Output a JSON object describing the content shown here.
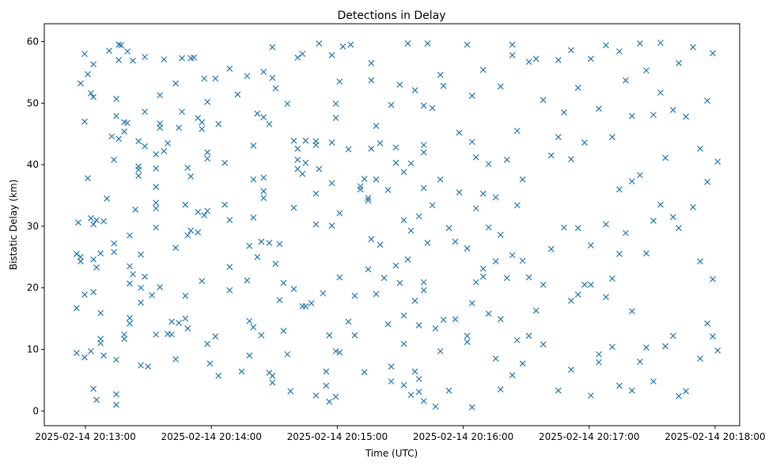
{
  "chart_data": {
    "type": "scatter",
    "title": "Detections in Delay",
    "xlabel": "Time (UTC)",
    "ylabel": "Bistatic Delay (km)",
    "x_unit": "seconds after 2025-02-14 20:13:00",
    "xlim": [
      -19.6,
      311.7
    ],
    "ylim": [
      -2.4,
      62.9
    ],
    "grid": false,
    "marker": "x",
    "color": "#1f77b4",
    "xticks": [
      {
        "value": 0,
        "label": "2025-02-14 20:13:00"
      },
      {
        "value": 60,
        "label": "2025-02-14 20:14:00"
      },
      {
        "value": 120,
        "label": "2025-02-14 20:15:00"
      },
      {
        "value": 180,
        "label": "2025-02-14 20:16:00"
      },
      {
        "value": 240,
        "label": "2025-02-14 20:17:00"
      },
      {
        "value": 300,
        "label": "2025-02-14 20:18:00"
      }
    ],
    "yticks": [
      {
        "value": 0,
        "label": "0"
      },
      {
        "value": 10,
        "label": "10"
      },
      {
        "value": 20,
        "label": "20"
      },
      {
        "value": 30,
        "label": "30"
      },
      {
        "value": 40,
        "label": "40"
      },
      {
        "value": 50,
        "label": "50"
      },
      {
        "value": 60,
        "label": "60"
      }
    ],
    "points_by_time": [
      [
        -4.2,
        [
          25.5,
          16.7,
          9.4
        ]
      ],
      [
        -3.4,
        [
          30.6
        ]
      ],
      [
        -2.3,
        [
          53.2,
          25,
          24.3
        ]
      ],
      [
        -0.4,
        [
          58,
          47,
          18.9,
          8.7
        ]
      ],
      [
        1.1,
        [
          37.8,
          54.7
        ]
      ],
      [
        2.6,
        [
          51.6,
          31.3,
          9.7
        ]
      ],
      [
        3.8,
        [
          56.3,
          51,
          30.3,
          24.6,
          19.3,
          3.6
        ]
      ],
      [
        5.3,
        [
          31,
          23.3,
          1.8
        ]
      ],
      [
        7.2,
        [
          11.7,
          15.9,
          11,
          25.6
        ]
      ],
      [
        8.7,
        [
          30.8,
          9
        ]
      ],
      [
        10.2,
        [
          34.5
        ]
      ],
      [
        11.3,
        [
          58.5
        ]
      ],
      [
        12.5,
        [
          44.6
        ]
      ],
      [
        13.6,
        [
          40.8,
          27.2,
          25.8
        ]
      ],
      [
        14.7,
        [
          50.7,
          47.9,
          2.7,
          1,
          8.3
        ]
      ],
      [
        15.9,
        [
          59.5,
          57,
          44.2
        ]
      ],
      [
        17.0,
        [
          59.4
        ]
      ],
      [
        18.5,
        [
          46.9,
          45.4,
          12.4,
          11.7
        ]
      ],
      [
        20.0,
        [
          46.8,
          58.4
        ]
      ],
      [
        21.1,
        [
          28.5,
          23.5,
          20.7,
          15.1,
          14.2
        ]
      ],
      [
        22.6,
        [
          56.9,
          22.2
        ]
      ],
      [
        23.8,
        [
          32.7
        ]
      ],
      [
        25.3,
        [
          43.8,
          39.7,
          39.2,
          38.2
        ]
      ],
      [
        26.4,
        [
          25.4,
          20,
          17.6,
          7.4
        ]
      ],
      [
        28.3,
        [
          57.5,
          48.6,
          43,
          21.8
        ]
      ],
      [
        29.8,
        [
          7.2
        ]
      ],
      [
        31.7,
        [
          18.8
        ]
      ],
      [
        33.6,
        [
          41.7,
          39.4,
          36.4,
          33.8,
          32.9,
          29.8,
          12.4
        ]
      ],
      [
        35.5,
        [
          51.3,
          46.7,
          46,
          20.1
        ]
      ],
      [
        37.4,
        [
          57.1,
          42.2
        ]
      ],
      [
        39.2,
        [
          43.5,
          12.5
        ]
      ],
      [
        41.1,
        [
          14.5,
          12.4
        ]
      ],
      [
        43.0,
        [
          53.2,
          26.5,
          8.4
        ]
      ],
      [
        44.5,
        [
          46,
          14.3
        ]
      ],
      [
        46.0,
        [
          57.3,
          48.6
        ]
      ],
      [
        47.6,
        [
          33.5,
          18.7,
          15
        ]
      ],
      [
        48.7,
        [
          39.5,
          28.5,
          13.4
        ]
      ],
      [
        50.2,
        [
          57.3,
          38.1,
          29.3
        ]
      ],
      [
        51.7,
        [
          57.4
        ]
      ],
      [
        53.6,
        [
          47.6,
          32.3,
          29
        ]
      ],
      [
        55.5,
        [
          46.9,
          45.8,
          21.1
        ]
      ],
      [
        56.6,
        [
          54,
          31.8
        ]
      ],
      [
        58.1,
        [
          50.2,
          42,
          41,
          32.5,
          10.9
        ]
      ],
      [
        59.3,
        [
          7.7
        ]
      ],
      [
        61.9,
        [
          54,
          12.1
        ]
      ],
      [
        63.4,
        [
          46.6,
          5.7
        ]
      ],
      [
        66.4,
        [
          40.3,
          33.5
        ]
      ],
      [
        68.7,
        [
          55.6,
          31,
          23.4,
          19.6
        ]
      ],
      [
        72.5,
        [
          51.4
        ]
      ],
      [
        74.4,
        [
          6.4
        ]
      ],
      [
        77.0,
        [
          54.4,
          21.2
        ]
      ],
      [
        78.1,
        [
          26.8,
          14.6,
          9
        ]
      ],
      [
        80.0,
        [
          43.1,
          37.6,
          31.4,
          13.6
        ]
      ],
      [
        81.9,
        [
          48.3,
          25
        ]
      ],
      [
        83.8,
        [
          27.5,
          12.3
        ]
      ],
      [
        84.9,
        [
          55.1,
          47.7,
          37.9,
          35.7,
          34.6
        ]
      ],
      [
        87.6,
        [
          46.6,
          27.3,
          6.2
        ]
      ],
      [
        89.1,
        [
          59.1,
          54.1,
          5.7,
          4.6
        ]
      ],
      [
        90.6,
        [
          52.4,
          23.9
        ]
      ],
      [
        92.5,
        [
          27.1,
          18
        ]
      ],
      [
        94.4,
        [
          20.8,
          13
        ]
      ],
      [
        96.2,
        [
          49.9,
          9.2
        ]
      ],
      [
        97.7,
        [
          3.2
        ]
      ],
      [
        99.3,
        [
          43.9,
          33,
          19.8
        ]
      ],
      [
        101.1,
        [
          57.4,
          42.6,
          40.8,
          39.3
        ]
      ],
      [
        103.4,
        [
          58,
          38.5,
          17
        ]
      ],
      [
        104.9,
        [
          43.9,
          40.3,
          17
        ]
      ],
      [
        107.6,
        [
          17.5
        ]
      ],
      [
        109.8,
        [
          43.8,
          43.2,
          35.3,
          30.3,
          2.5
        ]
      ],
      [
        111.3,
        [
          59.7,
          39.3
        ]
      ],
      [
        113.2,
        [
          19.1
        ]
      ],
      [
        114.7,
        [
          6.4,
          4.1
        ]
      ],
      [
        116.2,
        [
          1.5,
          12.3
        ]
      ],
      [
        117.4,
        [
          57.8,
          43.6,
          37,
          30.1
        ]
      ],
      [
        119.3,
        [
          49.9,
          47.6,
          2.3,
          9.7
        ]
      ],
      [
        121.1,
        [
          53.5,
          32.1,
          21.7,
          9.5
        ]
      ],
      [
        122.7,
        [
          59.2
        ]
      ],
      [
        125.3,
        [
          42.5,
          14.5
        ]
      ],
      [
        126.4,
        [
          59.5
        ]
      ],
      [
        128.3,
        [
          18.7,
          12.3
        ]
      ],
      [
        131.0,
        [
          36.5,
          36
        ]
      ],
      [
        132.9,
        [
          37.7,
          6.3
        ]
      ],
      [
        134.7,
        [
          34.6,
          34.2,
          23
        ]
      ],
      [
        136.2,
        [
          56.5,
          53.7,
          42.6,
          27.9
        ]
      ],
      [
        138.5,
        [
          46.3,
          37.6,
          19
        ]
      ],
      [
        140.4,
        [
          43.5,
          27
        ]
      ],
      [
        142.3,
        [
          21.6
        ]
      ],
      [
        144.2,
        [
          35.9,
          14.1
        ]
      ],
      [
        145.7,
        [
          49.7,
          7.2,
          4.8
        ]
      ],
      [
        147.9,
        [
          42.8,
          40.3,
          23.6
        ]
      ],
      [
        149.8,
        [
          53,
          20.8
        ]
      ],
      [
        151.7,
        [
          38.8,
          31,
          15.5,
          10.9,
          4.2
        ]
      ],
      [
        153.6,
        [
          59.7,
          24.6
        ]
      ],
      [
        155.1,
        [
          40.2,
          29.3,
          2.6
        ]
      ],
      [
        157.0,
        [
          52.1,
          17.9,
          6.4
        ]
      ],
      [
        158.9,
        [
          31.6,
          13.9,
          3.1,
          5.2
        ]
      ],
      [
        161.2,
        [
          49.6,
          43.2,
          42,
          36.2,
          20.9,
          19.6,
          1.6
        ]
      ],
      [
        163.0,
        [
          59.7,
          27.3
        ]
      ],
      [
        165.3,
        [
          49.2,
          33.4
        ]
      ],
      [
        166.8,
        [
          13.4,
          0.7
        ]
      ],
      [
        169.1,
        [
          54.6,
          37.6,
          9.7
        ]
      ],
      [
        170.6,
        [
          52.8,
          14.8
        ]
      ],
      [
        173.2,
        [
          29.7,
          3.3
        ]
      ],
      [
        176.2,
        [
          27.5,
          14.9
        ]
      ],
      [
        178.1,
        [
          45.2,
          35.5
        ]
      ],
      [
        181.9,
        [
          59.5,
          26.4,
          12.2,
          11.2
        ]
      ],
      [
        184.2,
        [
          51.2,
          43.7,
          17.5,
          0.6
        ]
      ],
      [
        186.1,
        [
          41.2,
          32.9,
          20.9
        ]
      ],
      [
        189.5,
        [
          55.4,
          35.3,
          23.1,
          21.8
        ]
      ],
      [
        192.1,
        [
          40.1,
          29.8,
          15.8
        ]
      ],
      [
        195.5,
        [
          34.7,
          24.3,
          8.5
        ]
      ],
      [
        197.8,
        [
          52.7,
          28.6,
          14.9,
          3.5
        ]
      ],
      [
        200.8,
        [
          40.8,
          21.6
        ]
      ],
      [
        203.4,
        [
          59.5,
          57.8,
          25.3,
          5.8
        ]
      ],
      [
        205.7,
        [
          45.5,
          33.4,
          11.5
        ]
      ],
      [
        208.3,
        [
          37.6,
          24.4,
          7.7
        ]
      ],
      [
        211.3,
        [
          56.7,
          21.7,
          12.2
        ]
      ],
      [
        214.7,
        [
          57.2,
          16.3
        ]
      ],
      [
        218.1,
        [
          50.5,
          20.5,
          10.8
        ]
      ],
      [
        221.9,
        [
          41.5,
          26.3
        ]
      ],
      [
        225.3,
        [
          57,
          44.5,
          3.3
        ]
      ],
      [
        228.0,
        [
          48.5,
          29.8
        ]
      ],
      [
        231.4,
        [
          58.6,
          40.9,
          17.9,
          6.7
        ]
      ],
      [
        234.7,
        [
          52.5,
          29.7,
          18.9
        ]
      ],
      [
        237.8,
        [
          43.6,
          20.5
        ]
      ],
      [
        240.8,
        [
          57.2,
          26.9,
          20.5,
          2.5
        ]
      ],
      [
        244.6,
        [
          49.1,
          9.2,
          7.9
        ]
      ],
      [
        248.0,
        [
          59.4,
          30.3,
          18.5
        ]
      ],
      [
        251.0,
        [
          44.5,
          21.5,
          10.4
        ]
      ],
      [
        254.4,
        [
          58.4,
          36,
          25.5,
          4.1
        ]
      ],
      [
        257.4,
        [
          53.7,
          28.9
        ]
      ],
      [
        260.4,
        [
          47.9,
          37.3,
          16.2,
          3.3
        ]
      ],
      [
        264.2,
        [
          59.7,
          38.3,
          8
        ]
      ],
      [
        267.2,
        [
          55.3,
          25.6,
          10.3
        ]
      ],
      [
        270.6,
        [
          48.1,
          30.9,
          4.8
        ]
      ],
      [
        274.0,
        [
          59.8,
          51.7,
          33.5
        ]
      ],
      [
        276.3,
        [
          41.1,
          10.5
        ]
      ],
      [
        280.0,
        [
          48.9,
          31.5,
          12.2
        ]
      ],
      [
        282.7,
        [
          56.5,
          29.7,
          2.4
        ]
      ],
      [
        286.1,
        [
          47.8,
          3.2
        ]
      ],
      [
        289.5,
        [
          59.1,
          33.1
        ]
      ],
      [
        292.9,
        [
          42.6,
          24.3,
          8.5
        ]
      ],
      [
        296.3,
        [
          50.4,
          37.2,
          14.2
        ]
      ],
      [
        298.9,
        [
          58.1,
          21.4,
          12.1
        ]
      ],
      [
        301.2,
        [
          40.5,
          9.8
        ]
      ]
    ]
  }
}
